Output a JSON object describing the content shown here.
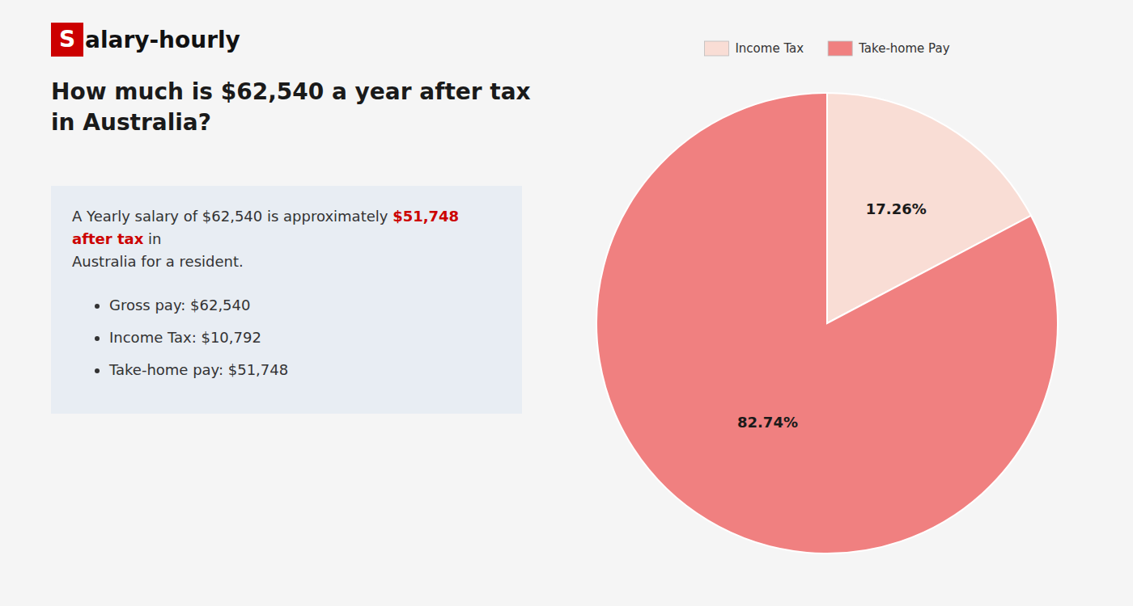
{
  "chart_data": {
    "type": "pie",
    "title": "How much is $62,540 a year after tax in Australia?",
    "annotations": [
      "S",
      "alary-hourly",
      "A Yearly salary of $62,540 is approximately ",
      "$51,748 after tax",
      " in",
      "Australia for a resident.",
      "Gross pay: $62,540",
      "Income Tax: $10,792",
      "Take-home pay: $51,748"
    ],
    "categories": [
      "Income Tax",
      "Take-home Pay"
    ],
    "values": [
      17.26,
      82.74
    ],
    "value_labels": [
      "17.26%",
      "82.74%"
    ],
    "colors": [
      "#f9ddd5",
      "#f08080"
    ],
    "data_labels": true,
    "legend": "top"
  }
}
